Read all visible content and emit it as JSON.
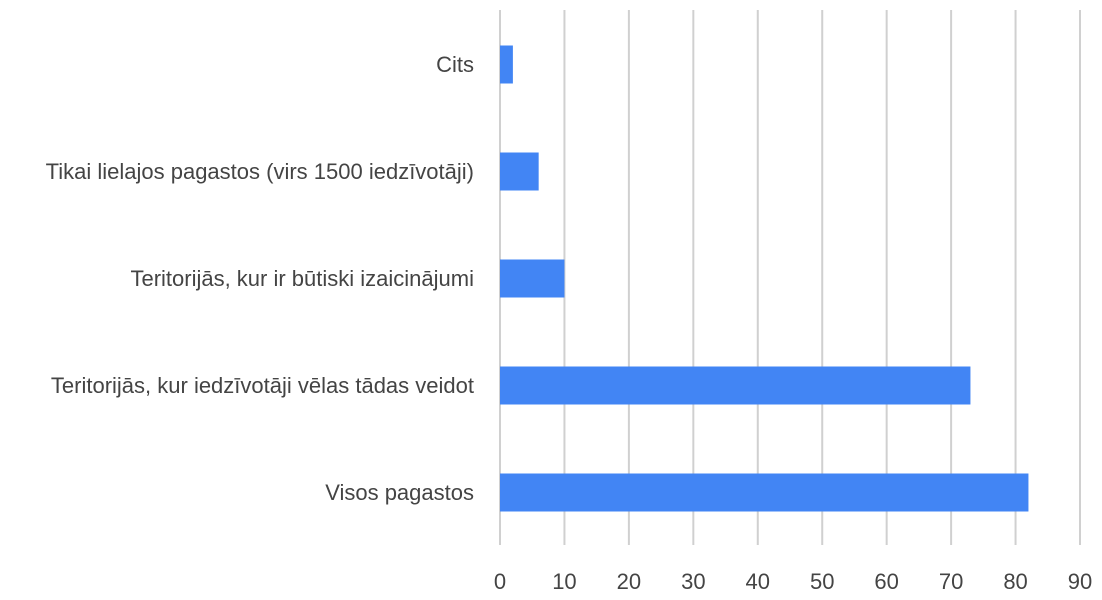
{
  "chart_data": {
    "type": "bar",
    "orientation": "horizontal",
    "categories": [
      "Cits",
      "Tikai lielajos pagastos (virs 1500 iedzīvotāji)",
      "Teritorijās, kur ir būtiski izaicinājumi",
      "Teritorijās, kur iedzīvotāji vēlas tādas veidot",
      "Visos pagastos"
    ],
    "values": [
      2,
      6,
      10,
      73,
      82
    ],
    "color": "#4285f4",
    "xlim": [
      0,
      90
    ],
    "xticks": [
      0,
      10,
      20,
      30,
      40,
      50,
      60,
      70,
      80,
      90
    ],
    "grid": true
  }
}
